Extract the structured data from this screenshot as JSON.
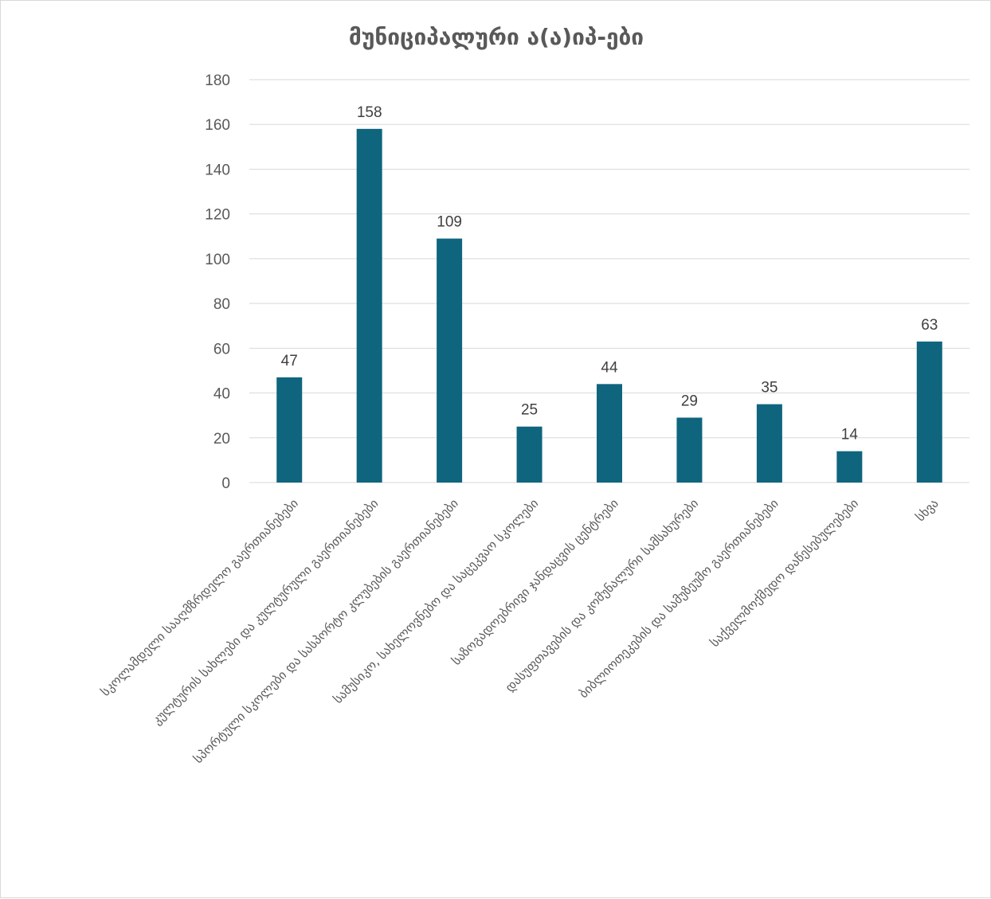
{
  "chart_data": {
    "type": "bar",
    "title": "მუნიციპალური ა(ა)იპ-ები",
    "xlabel": "",
    "ylabel": "",
    "ylim": [
      0,
      180
    ],
    "yticks": [
      0,
      20,
      40,
      60,
      80,
      100,
      120,
      140,
      160,
      180
    ],
    "grid": true,
    "legend": "none",
    "bar_color": "#0F657E",
    "categories": [
      "სკოლამდელი სააღმზრდელო გაერთიანებები",
      "კულტურის სახლები და კულტურული გაერთიანებები",
      "სპორტული სკოლები და სასპორტო კლუბების გაერთიანებები",
      "სამუსიკო, სახელოვნებო და საცეკვაო სკოლები",
      "საზოგადოებრივი ჯანდაცვის ცენტრები",
      "დასუფთავების და კომუნალური სამსახურები",
      "ბიბლიოთეკების და სამუზეუმო გაერთიანებები",
      "საქველმოქმედო დაწესებულებები",
      "სხვა"
    ],
    "values": [
      47,
      158,
      109,
      25,
      44,
      29,
      35,
      14,
      63
    ]
  }
}
